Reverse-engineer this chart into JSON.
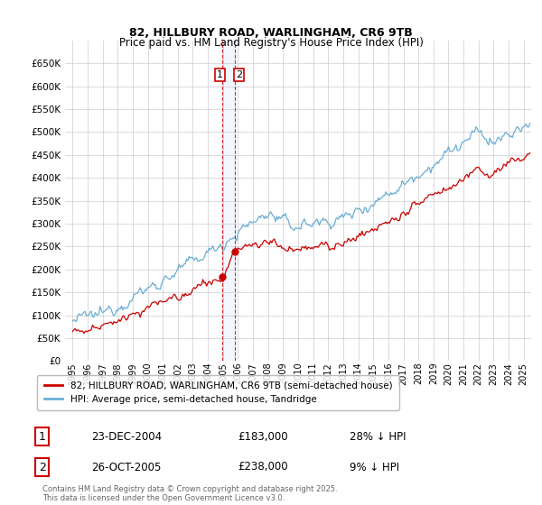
{
  "title1": "82, HILLBURY ROAD, WARLINGHAM, CR6 9TB",
  "title2": "Price paid vs. HM Land Registry's House Price Index (HPI)",
  "legend1": "82, HILLBURY ROAD, WARLINGHAM, CR6 9TB (semi-detached house)",
  "legend2": "HPI: Average price, semi-detached house, Tandridge",
  "footer": "Contains HM Land Registry data © Crown copyright and database right 2025.\nThis data is licensed under the Open Government Licence v3.0.",
  "sale1_date": "23-DEC-2004",
  "sale1_price": "£183,000",
  "sale1_hpi": "28% ↓ HPI",
  "sale2_date": "26-OCT-2005",
  "sale2_price": "£238,000",
  "sale2_hpi": "9% ↓ HPI",
  "sale1_x": 2004.97,
  "sale2_x": 2005.82,
  "sale1_y": 183000,
  "sale2_y": 238000,
  "ylim": [
    0,
    700000
  ],
  "xlim_start": 1994.5,
  "xlim_end": 2025.5,
  "hpi_color": "#6baed6",
  "price_color": "#cc0000",
  "vline_color": "#cc0000",
  "bg_color": "#ffffff",
  "grid_color": "#cccccc",
  "label_box_color": "#cc0000"
}
